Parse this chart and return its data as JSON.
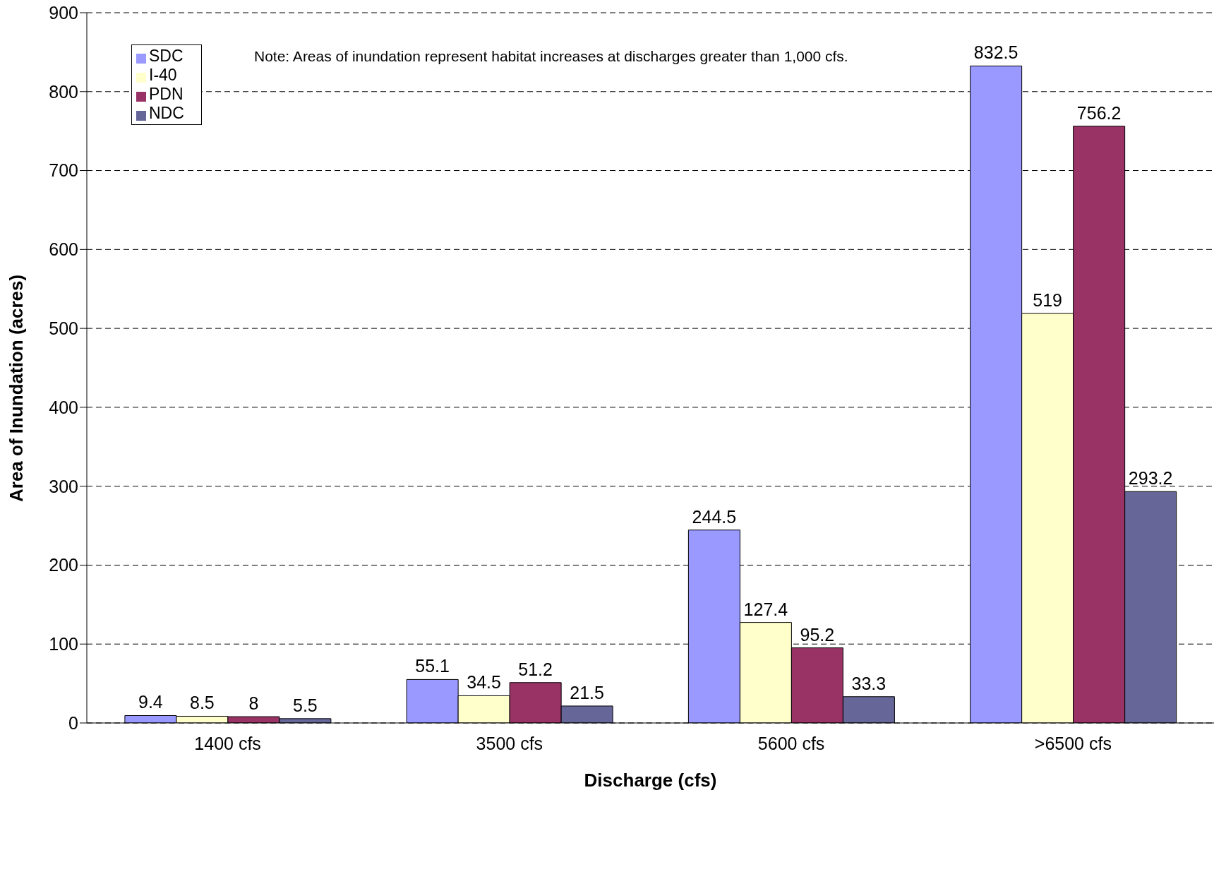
{
  "chart_data": {
    "type": "bar",
    "xlabel": "Discharge (cfs)",
    "ylabel": "Area of Inundation (acres)",
    "annotations": [
      "Note: Areas of inundation represent habitat increases at discharges greater than 1,000 cfs."
    ],
    "categories": [
      "1400 cfs",
      "3500 cfs",
      "5600 cfs",
      ">6500 cfs"
    ],
    "series": [
      {
        "name": "SDC",
        "color": "#9999ff",
        "values": [
          9.4,
          55.1,
          244.5,
          832.5
        ]
      },
      {
        "name": "I-40",
        "color": "#ffffcc",
        "values": [
          8.5,
          34.5,
          127.4,
          519
        ]
      },
      {
        "name": "PDN",
        "color": "#993366",
        "values": [
          8,
          51.2,
          95.2,
          756.2
        ]
      },
      {
        "name": "NDC",
        "color": "#666699",
        "values": [
          5.5,
          21.5,
          33.3,
          293.2
        ]
      }
    ],
    "ylim": [
      0,
      900
    ],
    "yticks": [
      0,
      100,
      200,
      300,
      400,
      500,
      600,
      700,
      800,
      900
    ],
    "grid": "y",
    "legend": "top left",
    "data_labels": true
  }
}
